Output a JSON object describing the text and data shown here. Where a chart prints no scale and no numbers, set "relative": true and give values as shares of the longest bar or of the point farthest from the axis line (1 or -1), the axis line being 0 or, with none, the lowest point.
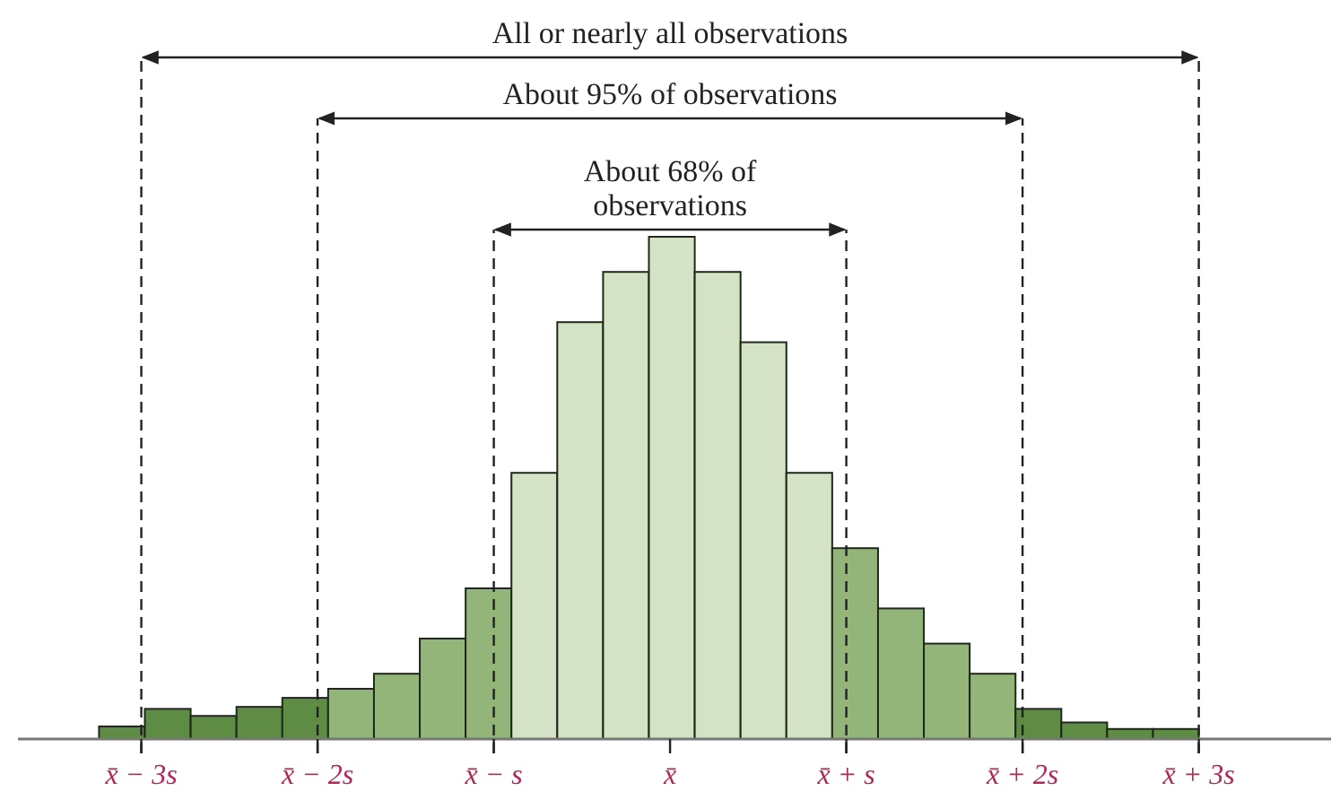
{
  "chart_data": {
    "type": "bar",
    "relative": true,
    "x": [
      -3.11,
      -2.85,
      -2.59,
      -2.33,
      -2.07,
      -1.81,
      -1.55,
      -1.29,
      -1.03,
      -0.77,
      -0.51,
      -0.25,
      0.01,
      0.27,
      0.53,
      0.79,
      1.05,
      1.31,
      1.57,
      1.83,
      2.09,
      2.35,
      2.61,
      2.87
    ],
    "values": [
      0.025,
      0.06,
      0.046,
      0.064,
      0.082,
      0.1,
      0.13,
      0.2,
      0.3,
      0.53,
      0.83,
      0.93,
      1,
      0.93,
      0.79,
      0.53,
      0.38,
      0.26,
      0.19,
      0.13,
      0.06,
      0.033,
      0.02,
      0.02
    ],
    "colors": [
      "#5e8c45",
      "#5e8c45",
      "#5e8c45",
      "#5e8c45",
      "#5e8c45",
      "#93b57a",
      "#93b57a",
      "#93b57a",
      "#93b57a",
      "#d4e2c6",
      "#d4e2c6",
      "#d4e2c6",
      "#d4e2c6",
      "#d4e2c6",
      "#d4e2c6",
      "#d4e2c6",
      "#93b57a",
      "#93b57a",
      "#93b57a",
      "#93b57a",
      "#5e8c45",
      "#5e8c45",
      "#5e8c45",
      "#5e8c45"
    ],
    "xlim": [
      -3.7,
      3.75
    ],
    "xticks": [
      {
        "value": -3,
        "label": "x̄ − 3s"
      },
      {
        "value": -2,
        "label": "x̄ − 2s"
      },
      {
        "value": -1,
        "label": "x̄ − s"
      },
      {
        "value": 0,
        "label": "x̄"
      },
      {
        "value": 1,
        "label": "x̄ + s"
      },
      {
        "value": 2,
        "label": "x̄ + 2s"
      },
      {
        "value": 3,
        "label": "x̄ + 3s"
      }
    ],
    "ref_lines": [
      {
        "axis": "x",
        "value": -3,
        "line_style": "dashed"
      },
      {
        "axis": "x",
        "value": 3,
        "line_style": "dashed"
      },
      {
        "axis": "x",
        "value": -2,
        "line_style": "dashed"
      },
      {
        "axis": "x",
        "value": 2,
        "line_style": "dashed"
      },
      {
        "axis": "x",
        "value": -1,
        "line_style": "dashed"
      },
      {
        "axis": "x",
        "value": 1,
        "line_style": "dashed"
      }
    ],
    "annotations": [
      "All or nearly all observations",
      "About 95% of observations",
      "About 68% of\nobservations"
    ]
  }
}
